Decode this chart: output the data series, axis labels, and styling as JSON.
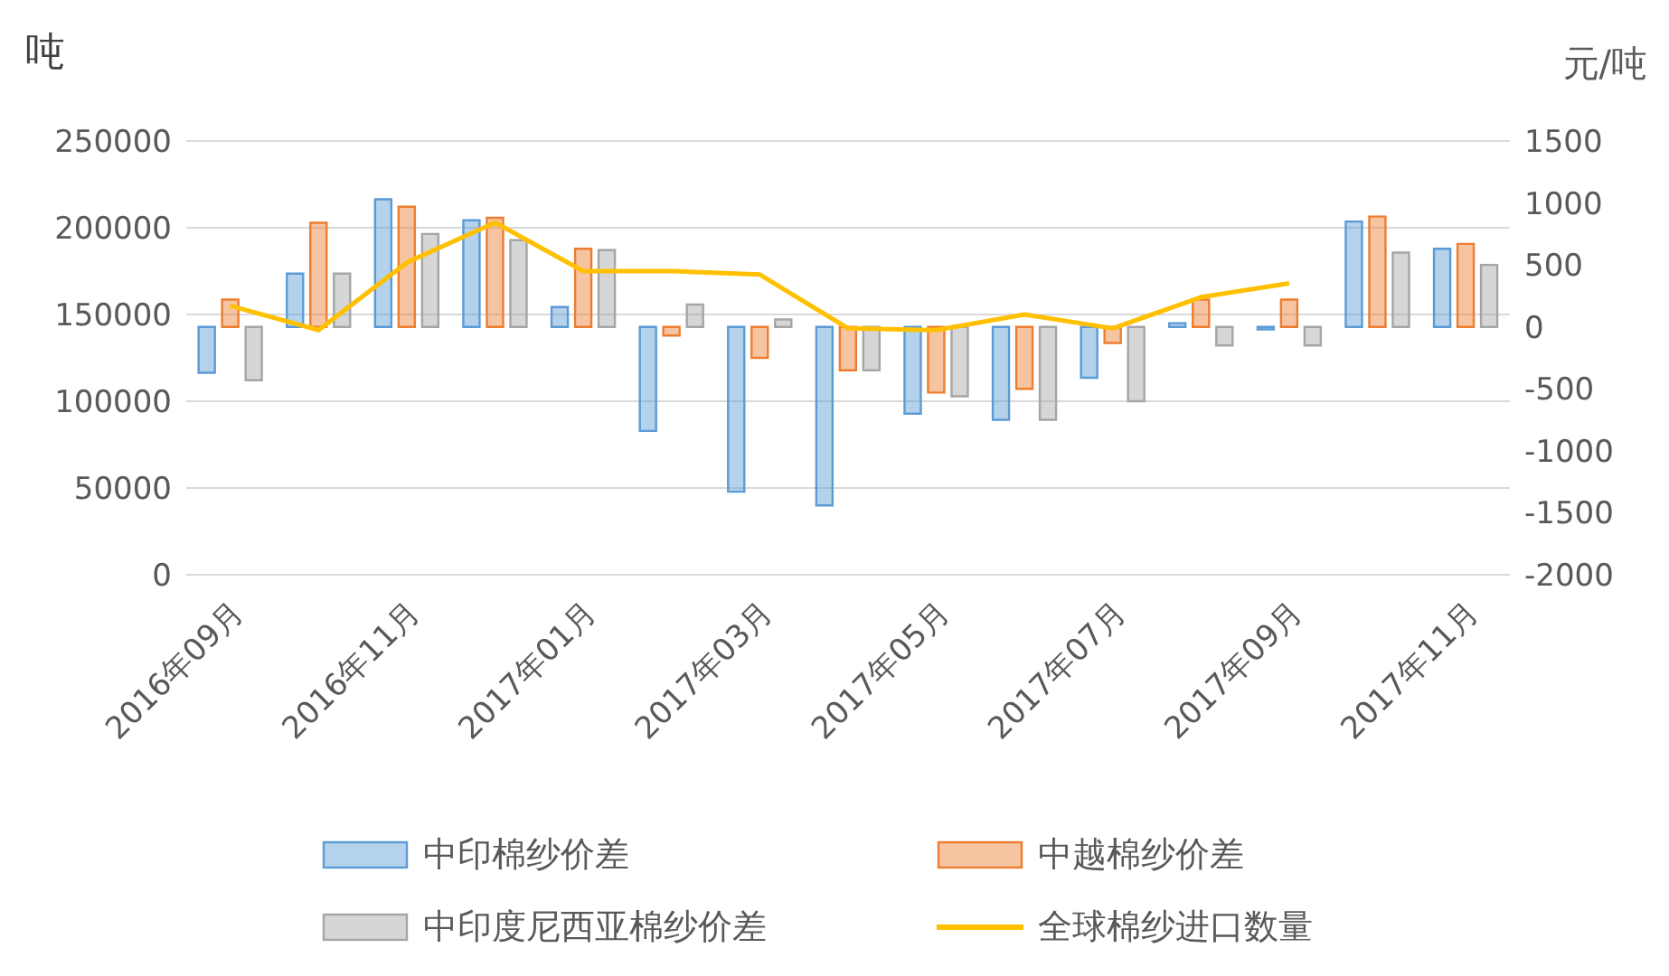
{
  "chart_data": {
    "type": "bar",
    "ylabel": "吨",
    "y2label": "元/吨",
    "categories": [
      "2016年09月",
      null,
      "2016年11月",
      null,
      "2017年01月",
      null,
      "2017年03月",
      null,
      "2017年05月",
      null,
      "2017年07月",
      null,
      "2017年09月",
      null,
      "2017年11月"
    ],
    "series": [
      {
        "name": "中印棉纱价差",
        "axis": "y2",
        "color": "#5b9bd5",
        "values": [
          -370,
          430,
          1030,
          860,
          160,
          -840,
          -1330,
          -1440,
          -700,
          -750,
          -410,
          30,
          -20,
          850,
          630
        ]
      },
      {
        "name": "中越棉纱价差",
        "axis": "y2",
        "color": "#ed7d31",
        "values": [
          220,
          840,
          970,
          880,
          630,
          -70,
          -250,
          -350,
          -530,
          -500,
          -130,
          220,
          220,
          890,
          670
        ]
      },
      {
        "name": "中印度尼西亚棉纱价差",
        "axis": "y2",
        "color": "#a5a5a5",
        "values": [
          -430,
          430,
          750,
          700,
          620,
          180,
          60,
          -350,
          -560,
          -750,
          -600,
          -150,
          -150,
          600,
          500
        ]
      },
      {
        "name": "全球棉纱进口数量",
        "type": "line",
        "color": "#ffc000",
        "values": [
          155000,
          141000,
          180000,
          203000,
          175000,
          175000,
          173000,
          142000,
          141000,
          150000,
          142000,
          160000,
          168000,
          null,
          null
        ]
      }
    ],
    "ylim": [
      0,
      250000
    ],
    "yticks": [
      0,
      50000,
      100000,
      150000,
      200000,
      250000
    ],
    "y2lim": [
      -2000,
      1500
    ],
    "y2ticks": [
      -2000,
      -1500,
      -1000,
      -500,
      0,
      500,
      1000,
      1500
    ],
    "grid": "y",
    "legend": "bottom",
    "marker": "none"
  }
}
